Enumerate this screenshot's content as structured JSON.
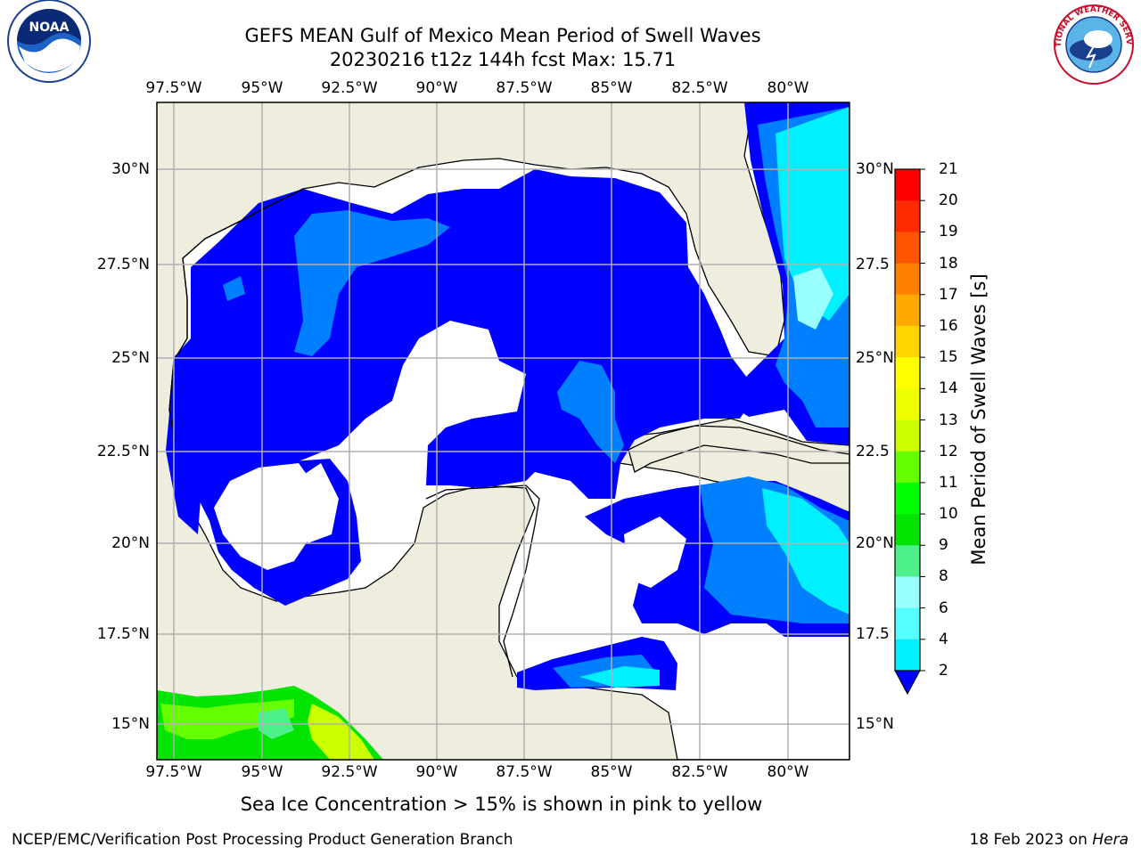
{
  "title_line1": "GEFS MEAN Gulf of Mexico Mean Period of Swell Waves",
  "title_line2": "20230216 t12z 144h fcst   Max: 15.71",
  "map": {
    "lon_ticks": [
      "97.5°W",
      "95°W",
      "92.5°W",
      "90°W",
      "87.5°W",
      "85°W",
      "82.5°W",
      "80°W"
    ],
    "lat_ticks_left": [
      "30°N",
      "27.5°N",
      "25°N",
      "22.5°N",
      "20°N",
      "17.5°N",
      "15°N"
    ],
    "lat_ticks_right": [
      "30°N",
      "27.5",
      "25°N",
      "22.5",
      "20°N",
      "17.5",
      "15°N"
    ],
    "colors": {
      "land": "#efedde",
      "ocean_low": "#0000ff",
      "grid": "#b0b0b0"
    }
  },
  "colorbar": {
    "label": "Mean Period of Swell Waves [s]",
    "ticks": [
      "21",
      "20",
      "19",
      "18",
      "17",
      "16",
      "15",
      "14",
      "13",
      "12",
      "11",
      "10",
      "9",
      "8",
      "6",
      "4",
      "2"
    ],
    "colors": [
      "#ff0000",
      "#ff2a00",
      "#ff5500",
      "#ff8000",
      "#ffaa00",
      "#ffd400",
      "#ffff00",
      "#eeff00",
      "#ccff00",
      "#66ff00",
      "#00ff00",
      "#00e400",
      "#4ef08c",
      "#99ffff",
      "#55ffff",
      "#00f0ff",
      "#00aaff",
      "#0080ff"
    ]
  },
  "subtitle": "Sea Ice Concentration > 15% is shown in pink to yellow",
  "footer": {
    "left": "NCEP/EMC/Verification Post Processing Product Generation Branch",
    "right_date": "18 Feb 2023 on ",
    "right_host": "Hera"
  },
  "logos": {
    "left": "NOAA",
    "right": "NATIONAL WEATHER SERVICE"
  }
}
